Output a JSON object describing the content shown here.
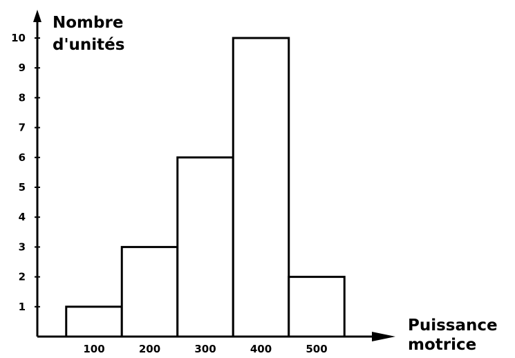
{
  "chart_data": {
    "type": "bar",
    "categories": [
      "100",
      "200",
      "300",
      "400",
      "500"
    ],
    "x": [
      100,
      200,
      300,
      400,
      500
    ],
    "values": [
      1,
      3,
      6,
      10,
      2
    ],
    "title": "",
    "xlabel": [
      "Puissance",
      "motrice"
    ],
    "ylabel": [
      "Nombre",
      "d'unités"
    ],
    "ylim": [
      0,
      10
    ],
    "y_ticks": [
      "1",
      "2",
      "3",
      "4",
      "5",
      "6",
      "7",
      "8",
      "9",
      "10"
    ],
    "grid": false,
    "legend": "none",
    "colors": {
      "stroke": "#000000",
      "fill": "#ffffff"
    }
  }
}
